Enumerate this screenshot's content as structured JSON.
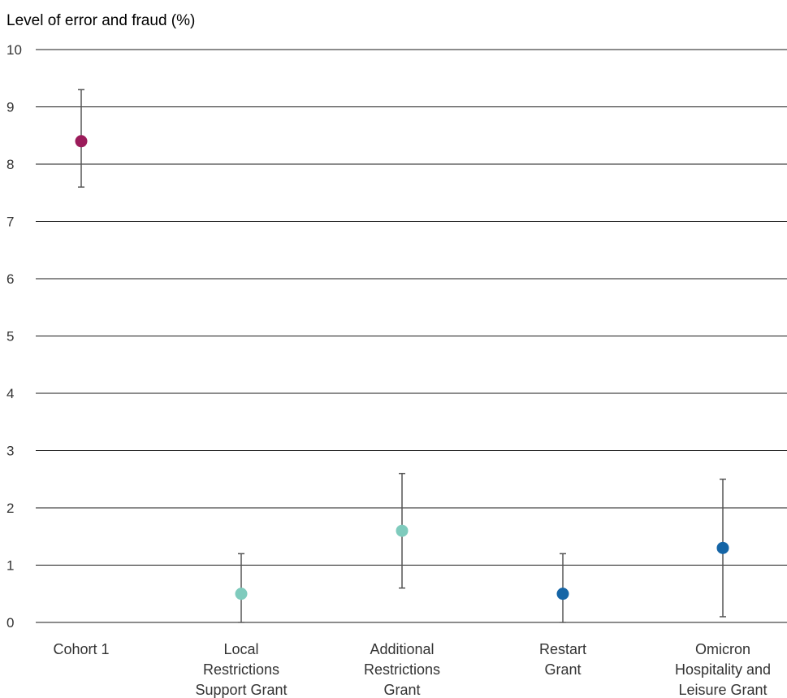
{
  "chart_data": {
    "type": "scatter",
    "subtype": "point-with-error-bars",
    "ylabel": "Level of error and fraud (%)",
    "xlabel": "",
    "ylim": [
      0,
      10
    ],
    "yticks": [
      "0",
      "1",
      "2",
      "3",
      "4",
      "5",
      "6",
      "7",
      "8",
      "9",
      "10"
    ],
    "grid": true,
    "categories": [
      {
        "lines": [
          "Cohort 1"
        ],
        "value": 8.4,
        "low": 7.6,
        "high": 9.3,
        "color": "#9b1b5a"
      },
      {
        "lines": [
          "Local",
          "Restrictions",
          "Support Grant"
        ],
        "value": 0.5,
        "low": 0.0,
        "high": 1.2,
        "color": "#7fcbbd"
      },
      {
        "lines": [
          "Additional",
          "Restrictions",
          "Grant"
        ],
        "value": 1.6,
        "low": 0.6,
        "high": 2.6,
        "color": "#7fcbbd"
      },
      {
        "lines": [
          "Restart",
          "Grant"
        ],
        "value": 0.5,
        "low": 0.0,
        "high": 1.2,
        "color": "#1565a6"
      },
      {
        "lines": [
          "Omicron",
          "Hospitality and",
          "Leisure Grant"
        ],
        "value": 1.3,
        "low": 0.1,
        "high": 2.5,
        "color": "#1565a6"
      }
    ]
  }
}
